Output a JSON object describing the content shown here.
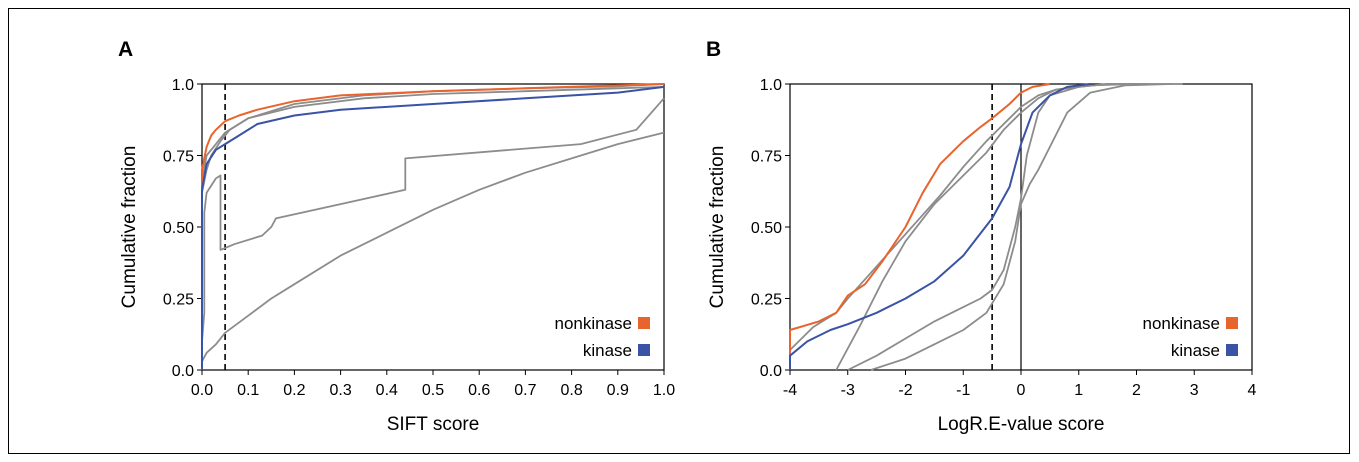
{
  "figure": {
    "colors": {
      "nonkinase": "#e8642c",
      "kinase": "#3a53a4",
      "other": "#8c8c8c"
    }
  },
  "chart_data": [
    {
      "panel_label": "A",
      "type": "line",
      "xlabel": "SIFT score",
      "ylabel": "Cumulative fraction",
      "xlim": [
        0,
        1
      ],
      "ylim": [
        0,
        1
      ],
      "xticks": [
        "0.0",
        "0.1",
        "0.2",
        "0.3",
        "0.4",
        "0.5",
        "0.6",
        "0.7",
        "0.8",
        "0.9",
        "1.0"
      ],
      "yticks": [
        "0.0",
        "0.25",
        "0.50",
        "0.75",
        "1.0"
      ],
      "vline_dashed": 0.05,
      "legend": {
        "position": "bottom-right",
        "entries": [
          {
            "label": "nonkinase",
            "color": "#e8642c"
          },
          {
            "label": "kinase",
            "color": "#3a53a4"
          }
        ]
      },
      "series": [
        {
          "name": "nonkinase",
          "color": "#e8642c",
          "x": [
            0,
            0,
            0.01,
            0.02,
            0.03,
            0.05,
            0.08,
            0.12,
            0.2,
            0.3,
            0.5,
            0.7,
            0.9,
            1.0
          ],
          "y": [
            0,
            0.7,
            0.78,
            0.82,
            0.84,
            0.87,
            0.89,
            0.91,
            0.94,
            0.96,
            0.975,
            0.985,
            0.995,
            1.0
          ]
        },
        {
          "name": "kinase",
          "color": "#3a53a4",
          "x": [
            0,
            0,
            0.01,
            0.03,
            0.05,
            0.08,
            0.12,
            0.2,
            0.3,
            0.5,
            0.7,
            0.9,
            1.0
          ],
          "y": [
            0,
            0.63,
            0.72,
            0.77,
            0.79,
            0.82,
            0.86,
            0.89,
            0.91,
            0.93,
            0.95,
            0.97,
            0.99
          ]
        },
        {
          "color": "#8c8c8c",
          "x": [
            0,
            0,
            0.01,
            0.03,
            0.05,
            0.1,
            0.2,
            0.35,
            0.5,
            0.7,
            0.9,
            1.0
          ],
          "y": [
            0,
            0.66,
            0.75,
            0.79,
            0.83,
            0.88,
            0.93,
            0.96,
            0.975,
            0.985,
            0.992,
            1.0
          ]
        },
        {
          "color": "#8c8c8c",
          "x": [
            0,
            0,
            0.01,
            0.02,
            0.04,
            0.06,
            0.1,
            0.2,
            0.35,
            0.5,
            0.7,
            0.9,
            1.0
          ],
          "y": [
            0,
            0.62,
            0.7,
            0.75,
            0.8,
            0.84,
            0.88,
            0.92,
            0.95,
            0.965,
            0.975,
            0.985,
            0.99
          ]
        },
        {
          "color": "#8c8c8c",
          "x": [
            0,
            0,
            0.005,
            0.005,
            0.01,
            0.03,
            0.04,
            0.04,
            0.07,
            0.13,
            0.15,
            0.16,
            0.3,
            0.44,
            0.44,
            0.82,
            0.94,
            1.0
          ],
          "y": [
            0,
            0.1,
            0.2,
            0.55,
            0.62,
            0.67,
            0.68,
            0.42,
            0.44,
            0.47,
            0.5,
            0.53,
            0.58,
            0.63,
            0.74,
            0.79,
            0.84,
            0.95
          ]
        },
        {
          "color": "#8c8c8c",
          "x": [
            0,
            0.01,
            0.03,
            0.05,
            0.1,
            0.15,
            0.2,
            0.3,
            0.4,
            0.5,
            0.6,
            0.7,
            0.8,
            0.9,
            1.0
          ],
          "y": [
            0.03,
            0.06,
            0.09,
            0.13,
            0.19,
            0.25,
            0.3,
            0.4,
            0.48,
            0.56,
            0.63,
            0.69,
            0.74,
            0.79,
            0.83
          ]
        }
      ]
    },
    {
      "panel_label": "B",
      "type": "line",
      "xlabel": "LogR.E-value score",
      "ylabel": "Cumulative fraction",
      "xlim": [
        -4,
        4
      ],
      "ylim": [
        0,
        1
      ],
      "xticks": [
        "-4",
        "-3",
        "-2",
        "-1",
        "0",
        "1",
        "2",
        "3",
        "4"
      ],
      "yticks": [
        "0.0",
        "0.25",
        "0.50",
        "0.75",
        "1.0"
      ],
      "vline_dashed": -0.5,
      "vline_solid": 0,
      "legend": {
        "position": "bottom-right",
        "entries": [
          {
            "label": "nonkinase",
            "color": "#e8642c"
          },
          {
            "label": "kinase",
            "color": "#3a53a4"
          }
        ]
      },
      "series": [
        {
          "name": "nonkinase",
          "color": "#e8642c",
          "x": [
            -4,
            -4,
            -3.5,
            -3.2,
            -3,
            -2.7,
            -2.4,
            -2,
            -1.7,
            -1.4,
            -1,
            -0.7,
            -0.5,
            -0.2,
            0,
            0.2,
            0.5
          ],
          "y": [
            0,
            0.14,
            0.17,
            0.2,
            0.26,
            0.3,
            0.38,
            0.5,
            0.62,
            0.72,
            0.8,
            0.85,
            0.88,
            0.93,
            0.97,
            0.99,
            1.0
          ]
        },
        {
          "name": "kinase",
          "color": "#3a53a4",
          "x": [
            -4,
            -4,
            -3.7,
            -3.3,
            -3,
            -2.5,
            -2,
            -1.5,
            -1,
            -0.5,
            -0.2,
            0,
            0.2,
            0.5,
            0.8,
            1.2
          ],
          "y": [
            0,
            0.05,
            0.1,
            0.14,
            0.16,
            0.2,
            0.25,
            0.31,
            0.4,
            0.53,
            0.64,
            0.79,
            0.9,
            0.96,
            0.99,
            1.0
          ]
        },
        {
          "color": "#8c8c8c",
          "x": [
            -4,
            -4,
            -3.6,
            -3.2,
            -3,
            -2.6,
            -2.2,
            -1.8,
            -1.4,
            -1,
            -0.6,
            -0.2,
            0,
            0.3,
            0.6,
            1.2,
            2,
            2.8
          ],
          "y": [
            0,
            0.07,
            0.15,
            0.2,
            0.25,
            0.34,
            0.43,
            0.52,
            0.61,
            0.71,
            0.8,
            0.88,
            0.92,
            0.96,
            0.98,
            0.995,
            1.0,
            1.0
          ]
        },
        {
          "color": "#8c8c8c",
          "x": [
            -3.2,
            -2.8,
            -2.4,
            -2,
            -1.5,
            -1,
            -0.6,
            -0.3,
            0,
            0.3,
            0.6,
            1,
            1.5,
            2.2
          ],
          "y": [
            0,
            0.15,
            0.31,
            0.45,
            0.58,
            0.68,
            0.76,
            0.84,
            0.9,
            0.95,
            0.98,
            0.99,
            1.0,
            1.0
          ]
        },
        {
          "color": "#8c8c8c",
          "x": [
            -3,
            -2.5,
            -2,
            -1.5,
            -1,
            -0.7,
            -0.5,
            -0.3,
            -0.1,
            0,
            0.1,
            0.3,
            0.5,
            1,
            1.5,
            2
          ],
          "y": [
            0,
            0.05,
            0.11,
            0.17,
            0.22,
            0.25,
            0.28,
            0.35,
            0.5,
            0.6,
            0.75,
            0.9,
            0.96,
            0.99,
            1.0,
            1.0
          ]
        },
        {
          "color": "#8c8c8c",
          "x": [
            -2.6,
            -2,
            -1.5,
            -1,
            -0.6,
            -0.3,
            -0.1,
            0,
            0.15,
            0.3,
            0.5,
            0.8,
            1.2,
            1.8,
            2.6
          ],
          "y": [
            0,
            0.04,
            0.09,
            0.14,
            0.2,
            0.3,
            0.45,
            0.58,
            0.65,
            0.7,
            0.78,
            0.9,
            0.97,
            0.995,
            1.0
          ]
        }
      ]
    }
  ]
}
